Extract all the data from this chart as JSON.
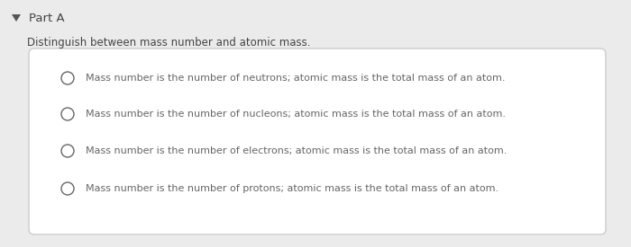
{
  "background_color": "#ebebeb",
  "box_color": "#ffffff",
  "part_label": "Part A",
  "question": "Distinguish between mass number and atomic mass.",
  "options": [
    "Mass number is the number of neutrons; atomic mass is the total mass of an atom.",
    "Mass number is the number of nucleons; atomic mass is the total mass of an atom.",
    "Mass number is the number of electrons; atomic mass is the total mass of an atom.",
    "Mass number is the number of protons; atomic mass is the total mass of an atom."
  ],
  "text_color": "#666666",
  "part_text_color": "#444444",
  "question_text_color": "#444444",
  "box_edge_color": "#cccccc",
  "font_size_part": 9.5,
  "font_size_question": 8.5,
  "font_size_options": 8.0,
  "triangle_color": "#555555"
}
